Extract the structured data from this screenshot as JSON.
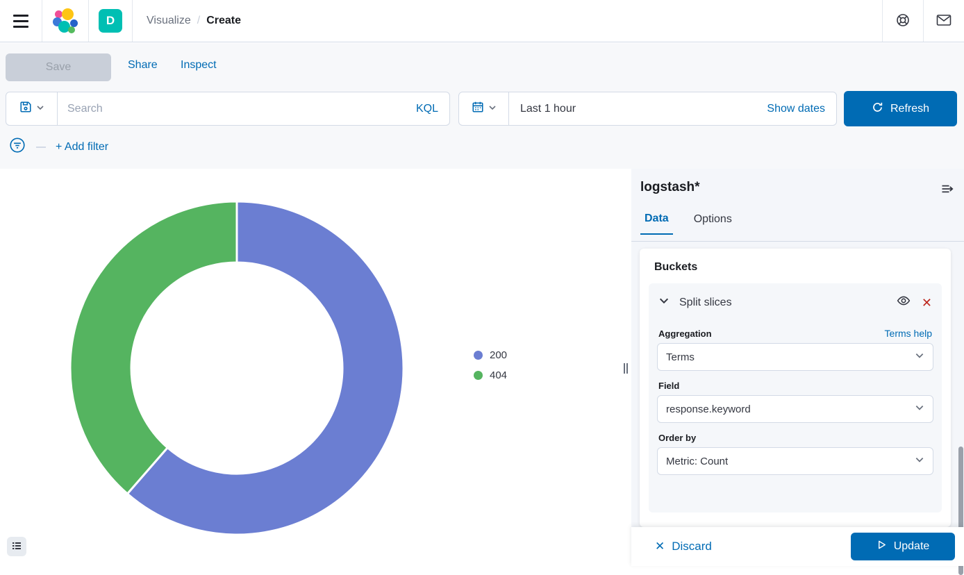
{
  "header": {
    "avatar_initial": "D",
    "breadcrumbs": [
      {
        "label": "Visualize"
      },
      {
        "label": "Create"
      }
    ]
  },
  "toolbar": {
    "save_label": "Save",
    "share_label": "Share",
    "inspect_label": "Inspect"
  },
  "querybar": {
    "search_placeholder": "Search",
    "kql_label": "KQL",
    "time_value": "Last 1 hour",
    "show_dates_label": "Show dates",
    "refresh_label": "Refresh"
  },
  "filterbar": {
    "add_filter_label": "+ Add filter"
  },
  "chart_data": {
    "type": "pie",
    "subtype": "donut",
    "categories": [
      "200",
      "404"
    ],
    "values_pct": [
      61.4,
      38.6
    ],
    "colors": [
      "#6B7ED2",
      "#55B460"
    ],
    "legend_position": "right",
    "outer_radius": 240,
    "inner_radius": 152
  },
  "editor": {
    "index_pattern": "logstash*",
    "tabs": [
      {
        "label": "Data"
      },
      {
        "label": "Options"
      }
    ],
    "buckets_title": "Buckets",
    "split_slices_label": "Split slices",
    "aggregation_label": "Aggregation",
    "terms_help_label": "Terms help",
    "aggregation_value": "Terms",
    "field_label": "Field",
    "field_value": "response.keyword",
    "order_by_label": "Order by",
    "order_by_value": "Metric: Count",
    "discard_label": "Discard",
    "update_label": "Update"
  },
  "icons": {
    "discard_x": "✕"
  },
  "colors": {
    "primary": "#006BB4",
    "danger": "#BD271E",
    "avatar_bg": "#00BFB3",
    "slice_200": "#6B7ED2",
    "slice_404": "#55B460"
  }
}
